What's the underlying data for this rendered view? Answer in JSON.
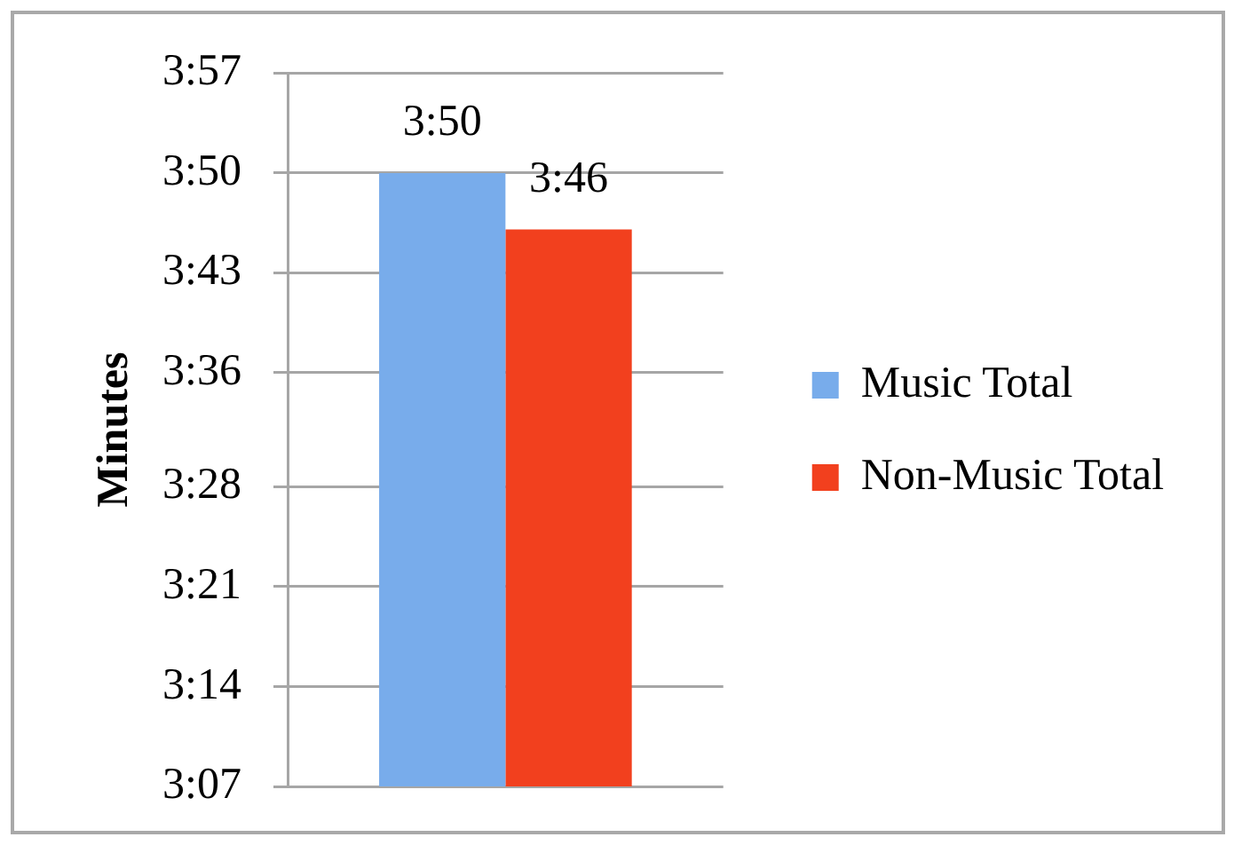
{
  "chart_data": {
    "type": "bar",
    "ylabel": "Minutes",
    "categories": [
      null
    ],
    "series": [
      {
        "name": "Music Total",
        "color": "#78aceb",
        "values": [
          3.833
        ],
        "value_labels": [
          "3:50"
        ]
      },
      {
        "name": "Non-Music Total",
        "color": "#f2401e",
        "values": [
          3.767
        ],
        "value_labels": [
          "3:46"
        ]
      }
    ],
    "ylim": [
      3.1167,
      3.95
    ],
    "yticks": [
      {
        "value": 3.1167,
        "label": "3:07"
      },
      {
        "value": 3.2333,
        "label": "3:14"
      },
      {
        "value": 3.35,
        "label": "3:21"
      },
      {
        "value": 3.4667,
        "label": "3:28"
      },
      {
        "value": 3.6,
        "label": "3:36"
      },
      {
        "value": 3.7167,
        "label": "3:43"
      },
      {
        "value": 3.8333,
        "label": "3:50"
      },
      {
        "value": 3.95,
        "label": "3:57"
      }
    ],
    "grid": "y",
    "legend": "right"
  }
}
